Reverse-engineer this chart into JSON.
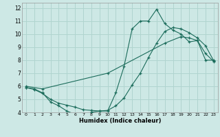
{
  "background_color": "#cde8e5",
  "grid_color": "#b0d4cf",
  "line_color": "#1a6b5a",
  "xlabel": "Humidex (Indice chaleur)",
  "xlim": [
    -0.5,
    23.5
  ],
  "ylim": [
    4,
    12.4
  ],
  "xticks": [
    0,
    1,
    2,
    3,
    4,
    5,
    6,
    7,
    8,
    9,
    10,
    11,
    12,
    13,
    14,
    15,
    16,
    17,
    18,
    19,
    20,
    21,
    22,
    23
  ],
  "yticks": [
    4,
    5,
    6,
    7,
    8,
    9,
    10,
    11,
    12
  ],
  "line1_x": [
    0,
    1,
    2,
    3,
    4,
    5,
    6,
    7,
    8,
    9,
    10,
    11,
    12,
    13,
    14,
    15,
    16,
    17,
    18,
    19,
    20,
    21,
    22,
    23
  ],
  "line1_y": [
    5.9,
    5.8,
    5.5,
    4.8,
    4.5,
    4.1,
    3.85,
    3.85,
    4.0,
    4.1,
    4.1,
    5.5,
    7.5,
    10.4,
    11.0,
    11.0,
    11.9,
    10.8,
    10.3,
    10.0,
    9.4,
    9.5,
    8.0,
    8.0
  ],
  "line2_x": [
    0,
    2,
    10,
    17,
    19,
    20,
    21,
    22,
    23
  ],
  "line2_y": [
    6.0,
    5.8,
    7.0,
    9.3,
    9.8,
    9.7,
    9.5,
    8.5,
    7.9
  ],
  "line3_x": [
    0,
    1,
    2,
    3,
    4,
    5,
    6,
    7,
    8,
    9,
    10,
    11,
    12,
    13,
    14,
    15,
    16,
    17,
    18,
    19,
    20,
    21,
    22,
    23
  ],
  "line3_y": [
    5.9,
    5.75,
    5.45,
    5.0,
    4.7,
    4.55,
    4.4,
    4.2,
    4.15,
    4.1,
    4.15,
    4.5,
    5.1,
    6.1,
    7.0,
    8.2,
    9.3,
    10.2,
    10.5,
    10.4,
    10.1,
    9.7,
    9.1,
    7.95
  ]
}
